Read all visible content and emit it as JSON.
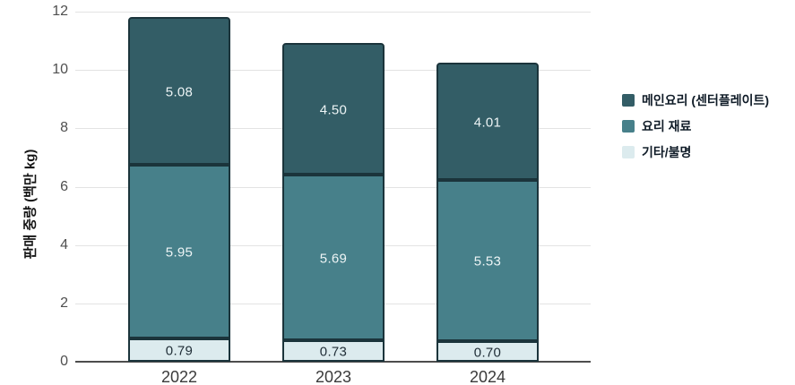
{
  "chart_data": {
    "type": "bar",
    "stacked": true,
    "title": "",
    "categories": [
      "2022",
      "2023",
      "2024"
    ],
    "series": [
      {
        "name": "기타/불명",
        "values": [
          0.79,
          0.73,
          0.7
        ],
        "labels": [
          "0.79",
          "0.73",
          "0.70"
        ],
        "color": "#dcebee",
        "text_color": "#1f2d36"
      },
      {
        "name": "요리 재료",
        "values": [
          5.95,
          5.69,
          5.53
        ],
        "labels": [
          "5.95",
          "5.69",
          "5.53"
        ],
        "color": "#47808a",
        "text_color": "#edf4f5"
      },
      {
        "name": "메인요리 (센터플레이트)",
        "values": [
          5.08,
          4.5,
          4.01
        ],
        "labels": [
          "5.08",
          "4.50",
          "4.01"
        ],
        "color": "#335d66",
        "text_color": "#edf4f5"
      }
    ],
    "totals": [
      11.82,
      10.92,
      10.24
    ],
    "legend": [
      {
        "label": "메인요리 (센터플레이트)",
        "color": "#335d66"
      },
      {
        "label": "요리 재료",
        "color": "#47808a"
      },
      {
        "label": "기타/불명",
        "color": "#dcebee"
      }
    ],
    "xlabel": "",
    "ylabel": "판매 중량 (백만 kg)",
    "ylim": [
      0,
      12
    ],
    "yticks": [
      0,
      2,
      4,
      6,
      8,
      10,
      12
    ],
    "grid": true,
    "legend_position": "right"
  },
  "colors": {
    "background": "#ffffff",
    "gridline": "#e3e3e3",
    "axis_line": "#4d4d4d",
    "tick_text": "#4f4f4f",
    "x_tick_text": "#3a3a3a",
    "segment_border": "#1b343b",
    "legend_text": "#101c28"
  }
}
